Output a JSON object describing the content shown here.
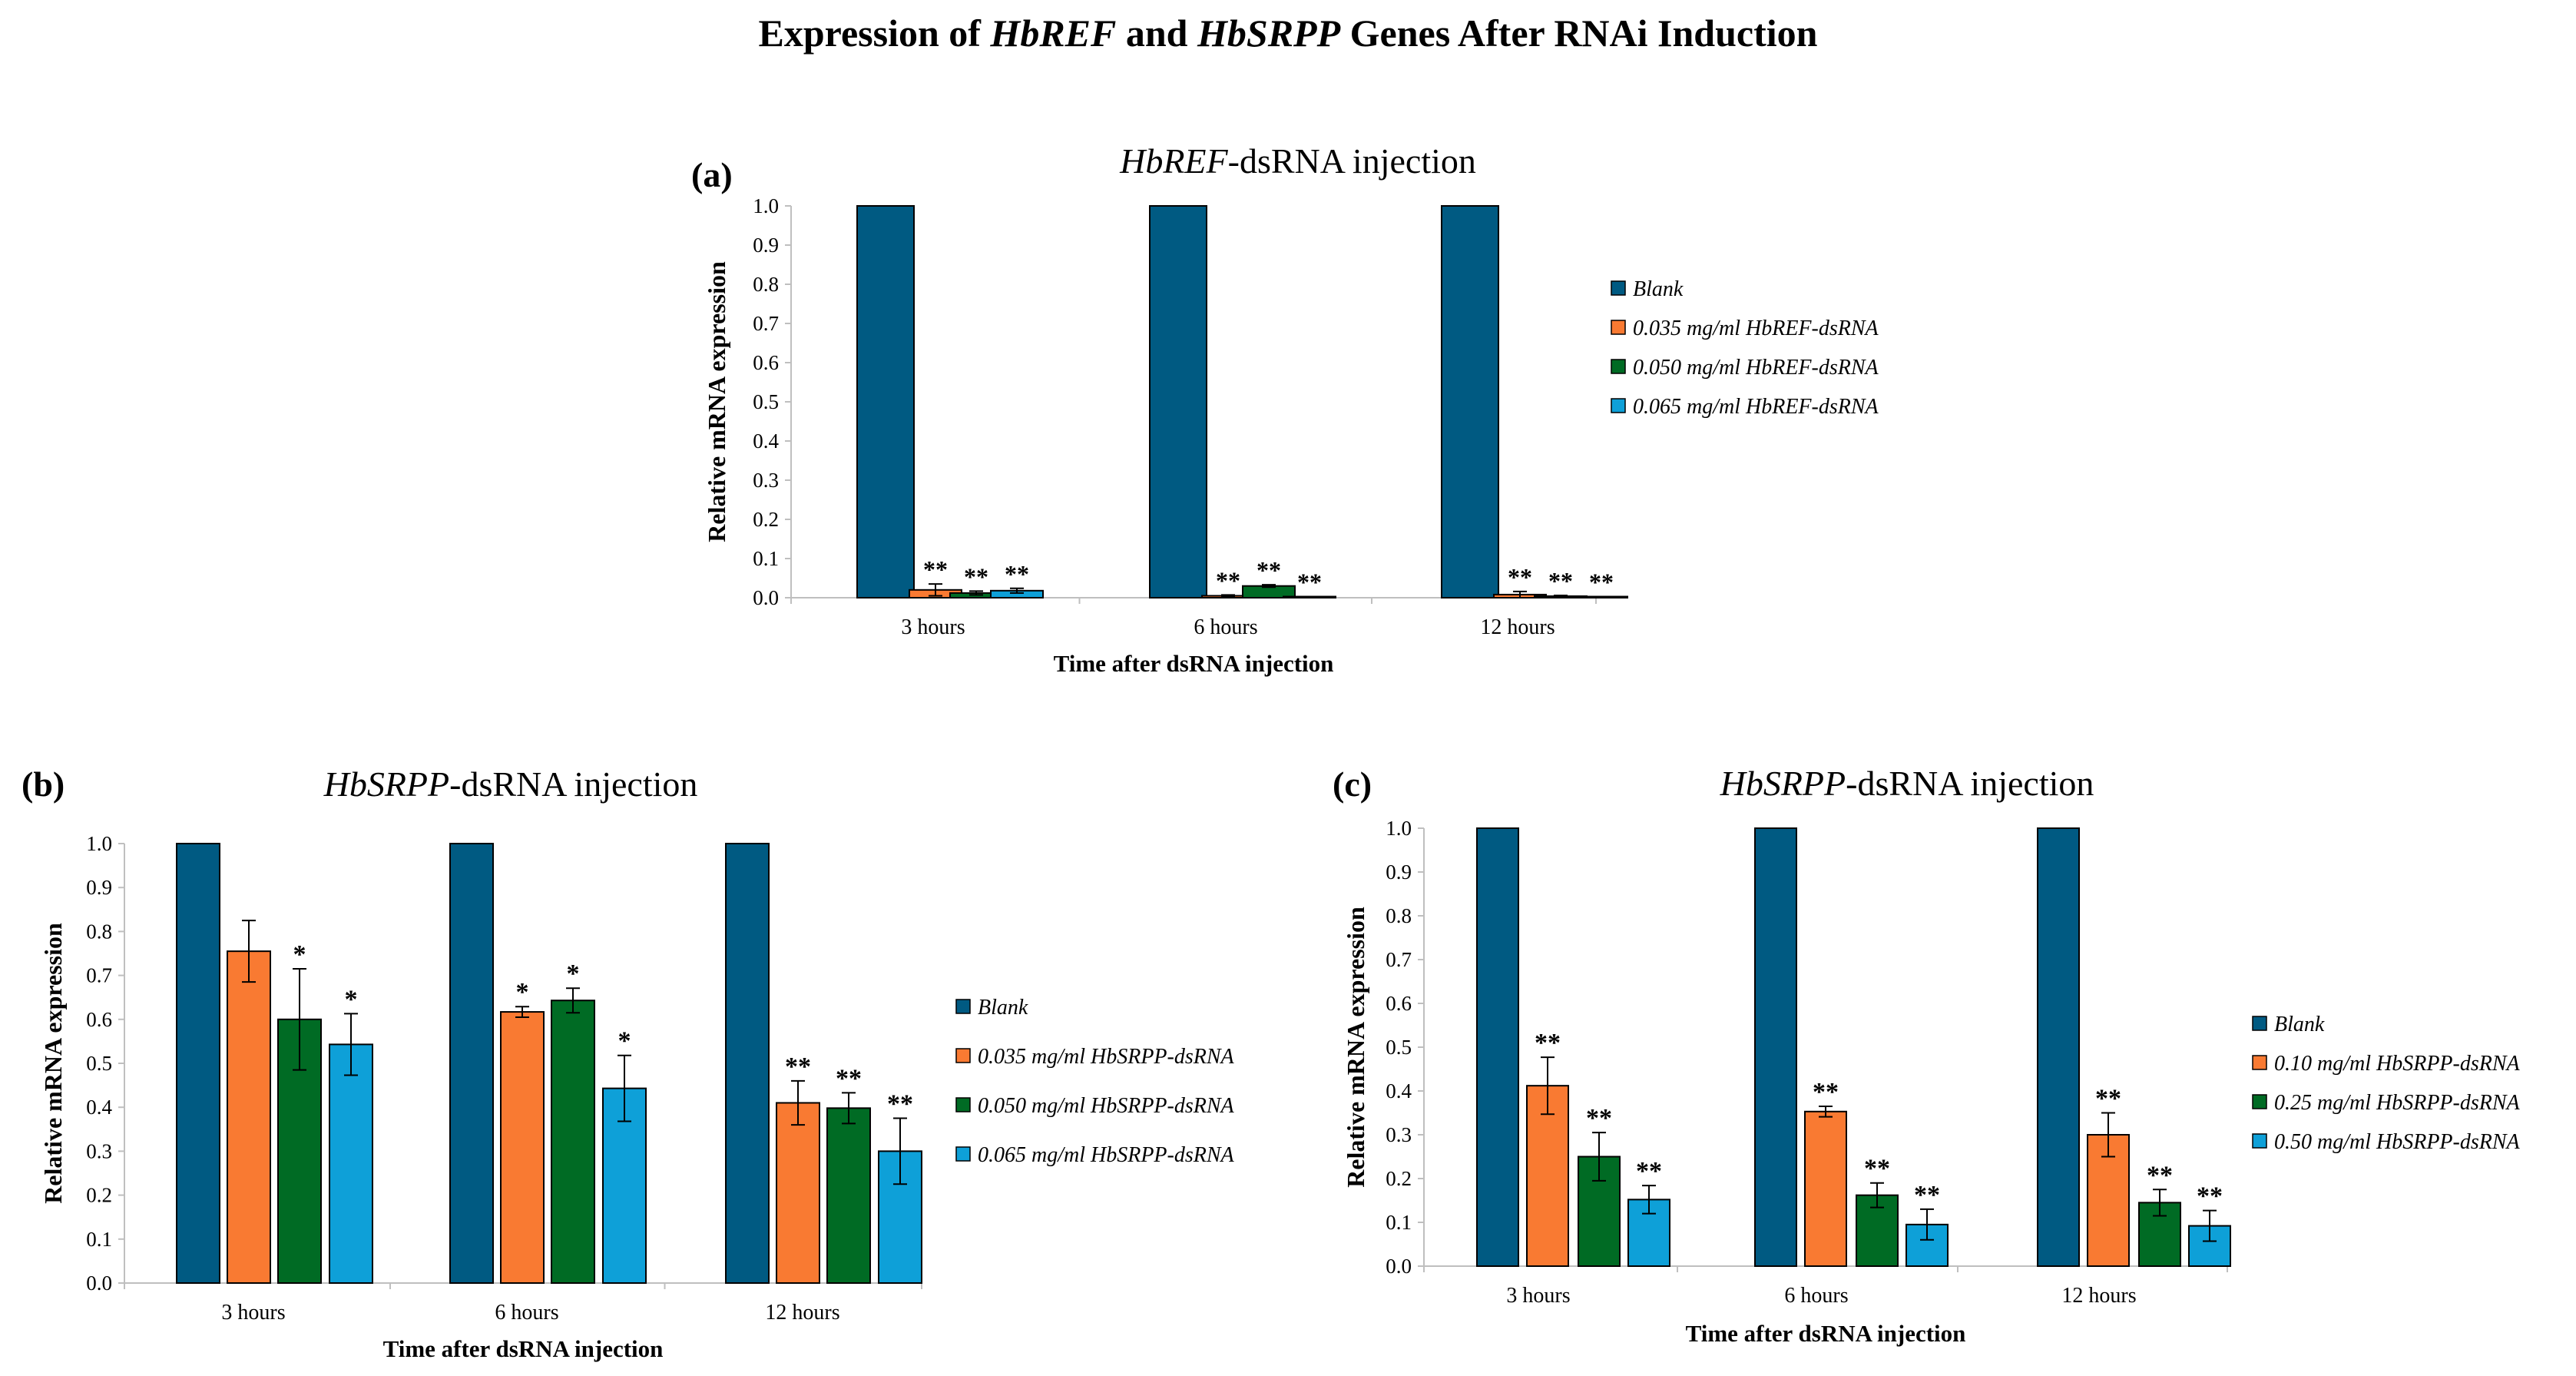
{
  "page": {
    "title_parts": [
      {
        "text": "Expression of ",
        "italic": false
      },
      {
        "text": "HbREF",
        "italic": true
      },
      {
        "text": " and ",
        "italic": false
      },
      {
        "text": "HbSRPP",
        "italic": true
      },
      {
        "text": " Genes After RNAi Induction",
        "italic": false
      }
    ]
  },
  "colors": {
    "blank": "#005a82",
    "dose1": "#f97a32",
    "dose2": "#006b24",
    "dose3": "#0ea0d8",
    "axis": "#bfbfbf"
  },
  "chart_data": [
    {
      "type": "bar",
      "panel": "(a)",
      "title_italic": "HbREF",
      "title_rest": "-dsRNA injection",
      "xlabel": "Time after dsRNA injection",
      "ylabel": "Relative mRNA expression",
      "ylim": [
        0,
        1.0
      ],
      "yticks": [
        "0.0",
        "0.1",
        "0.2",
        "0.3",
        "0.4",
        "0.5",
        "0.6",
        "0.7",
        "0.8",
        "0.9",
        "1.0"
      ],
      "categories": [
        "3 hours",
        "6 hours",
        "12 hours"
      ],
      "legend_position": "right",
      "series": [
        {
          "name": "Blank",
          "values": [
            1.0,
            1.0,
            1.0
          ],
          "errors": [
            0,
            0,
            0
          ],
          "labels": [
            "",
            "",
            ""
          ]
        },
        {
          "name": "0.035 mg/ml HbREF-dsRNA",
          "values": [
            0.02,
            0.005,
            0.008
          ],
          "errors": [
            0.015,
            0.002,
            0.008
          ],
          "labels": [
            "**",
            "**",
            "**"
          ]
        },
        {
          "name": "0.050 mg/ml HbREF-dsRNA",
          "values": [
            0.012,
            0.03,
            0.004
          ],
          "errors": [
            0.005,
            0.003,
            0.002
          ],
          "labels": [
            "**",
            "**",
            "**"
          ]
        },
        {
          "name": "0.065 mg/ml HbREF-dsRNA",
          "values": [
            0.018,
            0.002,
            0.002
          ],
          "errors": [
            0.006,
            0.001,
            0.001
          ],
          "labels": [
            "**",
            "**",
            "**"
          ]
        }
      ]
    },
    {
      "type": "bar",
      "panel": "(b)",
      "title_italic": "HbSRPP",
      "title_rest": "-dsRNA injection",
      "xlabel": "Time after dsRNA injection",
      "ylabel": "Relative mRNA expression",
      "ylim": [
        0,
        1.0
      ],
      "yticks": [
        "0.0",
        "0.1",
        "0.2",
        "0.3",
        "0.4",
        "0.5",
        "0.6",
        "0.7",
        "0.8",
        "0.9",
        "1.0"
      ],
      "categories": [
        "3 hours",
        "6 hours",
        "12 hours"
      ],
      "legend_position": "right",
      "series": [
        {
          "name": "Blank",
          "values": [
            1.0,
            1.0,
            1.0
          ],
          "errors": [
            0,
            0,
            0
          ],
          "labels": [
            "",
            "",
            ""
          ]
        },
        {
          "name": "0.035 mg/ml HbSRPP-dsRNA",
          "values": [
            0.755,
            0.617,
            0.41
          ],
          "errors": [
            0.07,
            0.012,
            0.05
          ],
          "labels": [
            "",
            "*",
            "**"
          ]
        },
        {
          "name": "0.050 mg/ml HbSRPP-dsRNA",
          "values": [
            0.6,
            0.643,
            0.398
          ],
          "errors": [
            0.115,
            0.028,
            0.035
          ],
          "labels": [
            "*",
            "*",
            "**"
          ]
        },
        {
          "name": "0.065 mg/ml HbSRPP-dsRNA",
          "values": [
            0.543,
            0.443,
            0.3
          ],
          "errors": [
            0.07,
            0.075,
            0.075
          ],
          "labels": [
            "*",
            "*",
            "**"
          ]
        }
      ]
    },
    {
      "type": "bar",
      "panel": "(c)",
      "title_italic": "HbSRPP",
      "title_rest": "-dsRNA injection",
      "xlabel": "Time after dsRNA injection",
      "ylabel": "Relative mRNA expression",
      "ylim": [
        0,
        1.0
      ],
      "yticks": [
        "0.0",
        "0.1",
        "0.2",
        "0.3",
        "0.4",
        "0.5",
        "0.6",
        "0.7",
        "0.8",
        "0.9",
        "1.0"
      ],
      "categories": [
        "3 hours",
        "6 hours",
        "12 hours"
      ],
      "legend_position": "right",
      "series": [
        {
          "name": "Blank",
          "values": [
            1.0,
            1.0,
            1.0
          ],
          "errors": [
            0,
            0,
            0
          ],
          "labels": [
            "",
            "",
            ""
          ]
        },
        {
          "name": "0.10 mg/ml  HbSRPP-dsRNA",
          "values": [
            0.412,
            0.353,
            0.3
          ],
          "errors": [
            0.065,
            0.012,
            0.05
          ],
          "labels": [
            "**",
            "**",
            "**"
          ]
        },
        {
          "name": "0.25 mg/ml  HbSRPP-dsRNA",
          "values": [
            0.25,
            0.162,
            0.145
          ],
          "errors": [
            0.055,
            0.028,
            0.03
          ],
          "labels": [
            "**",
            "**",
            "**"
          ]
        },
        {
          "name": "0.50 mg/ml  HbSRPP-dsRNA",
          "values": [
            0.152,
            0.095,
            0.092
          ],
          "errors": [
            0.032,
            0.035,
            0.035
          ],
          "labels": [
            "**",
            "**",
            "**"
          ]
        }
      ]
    }
  ]
}
